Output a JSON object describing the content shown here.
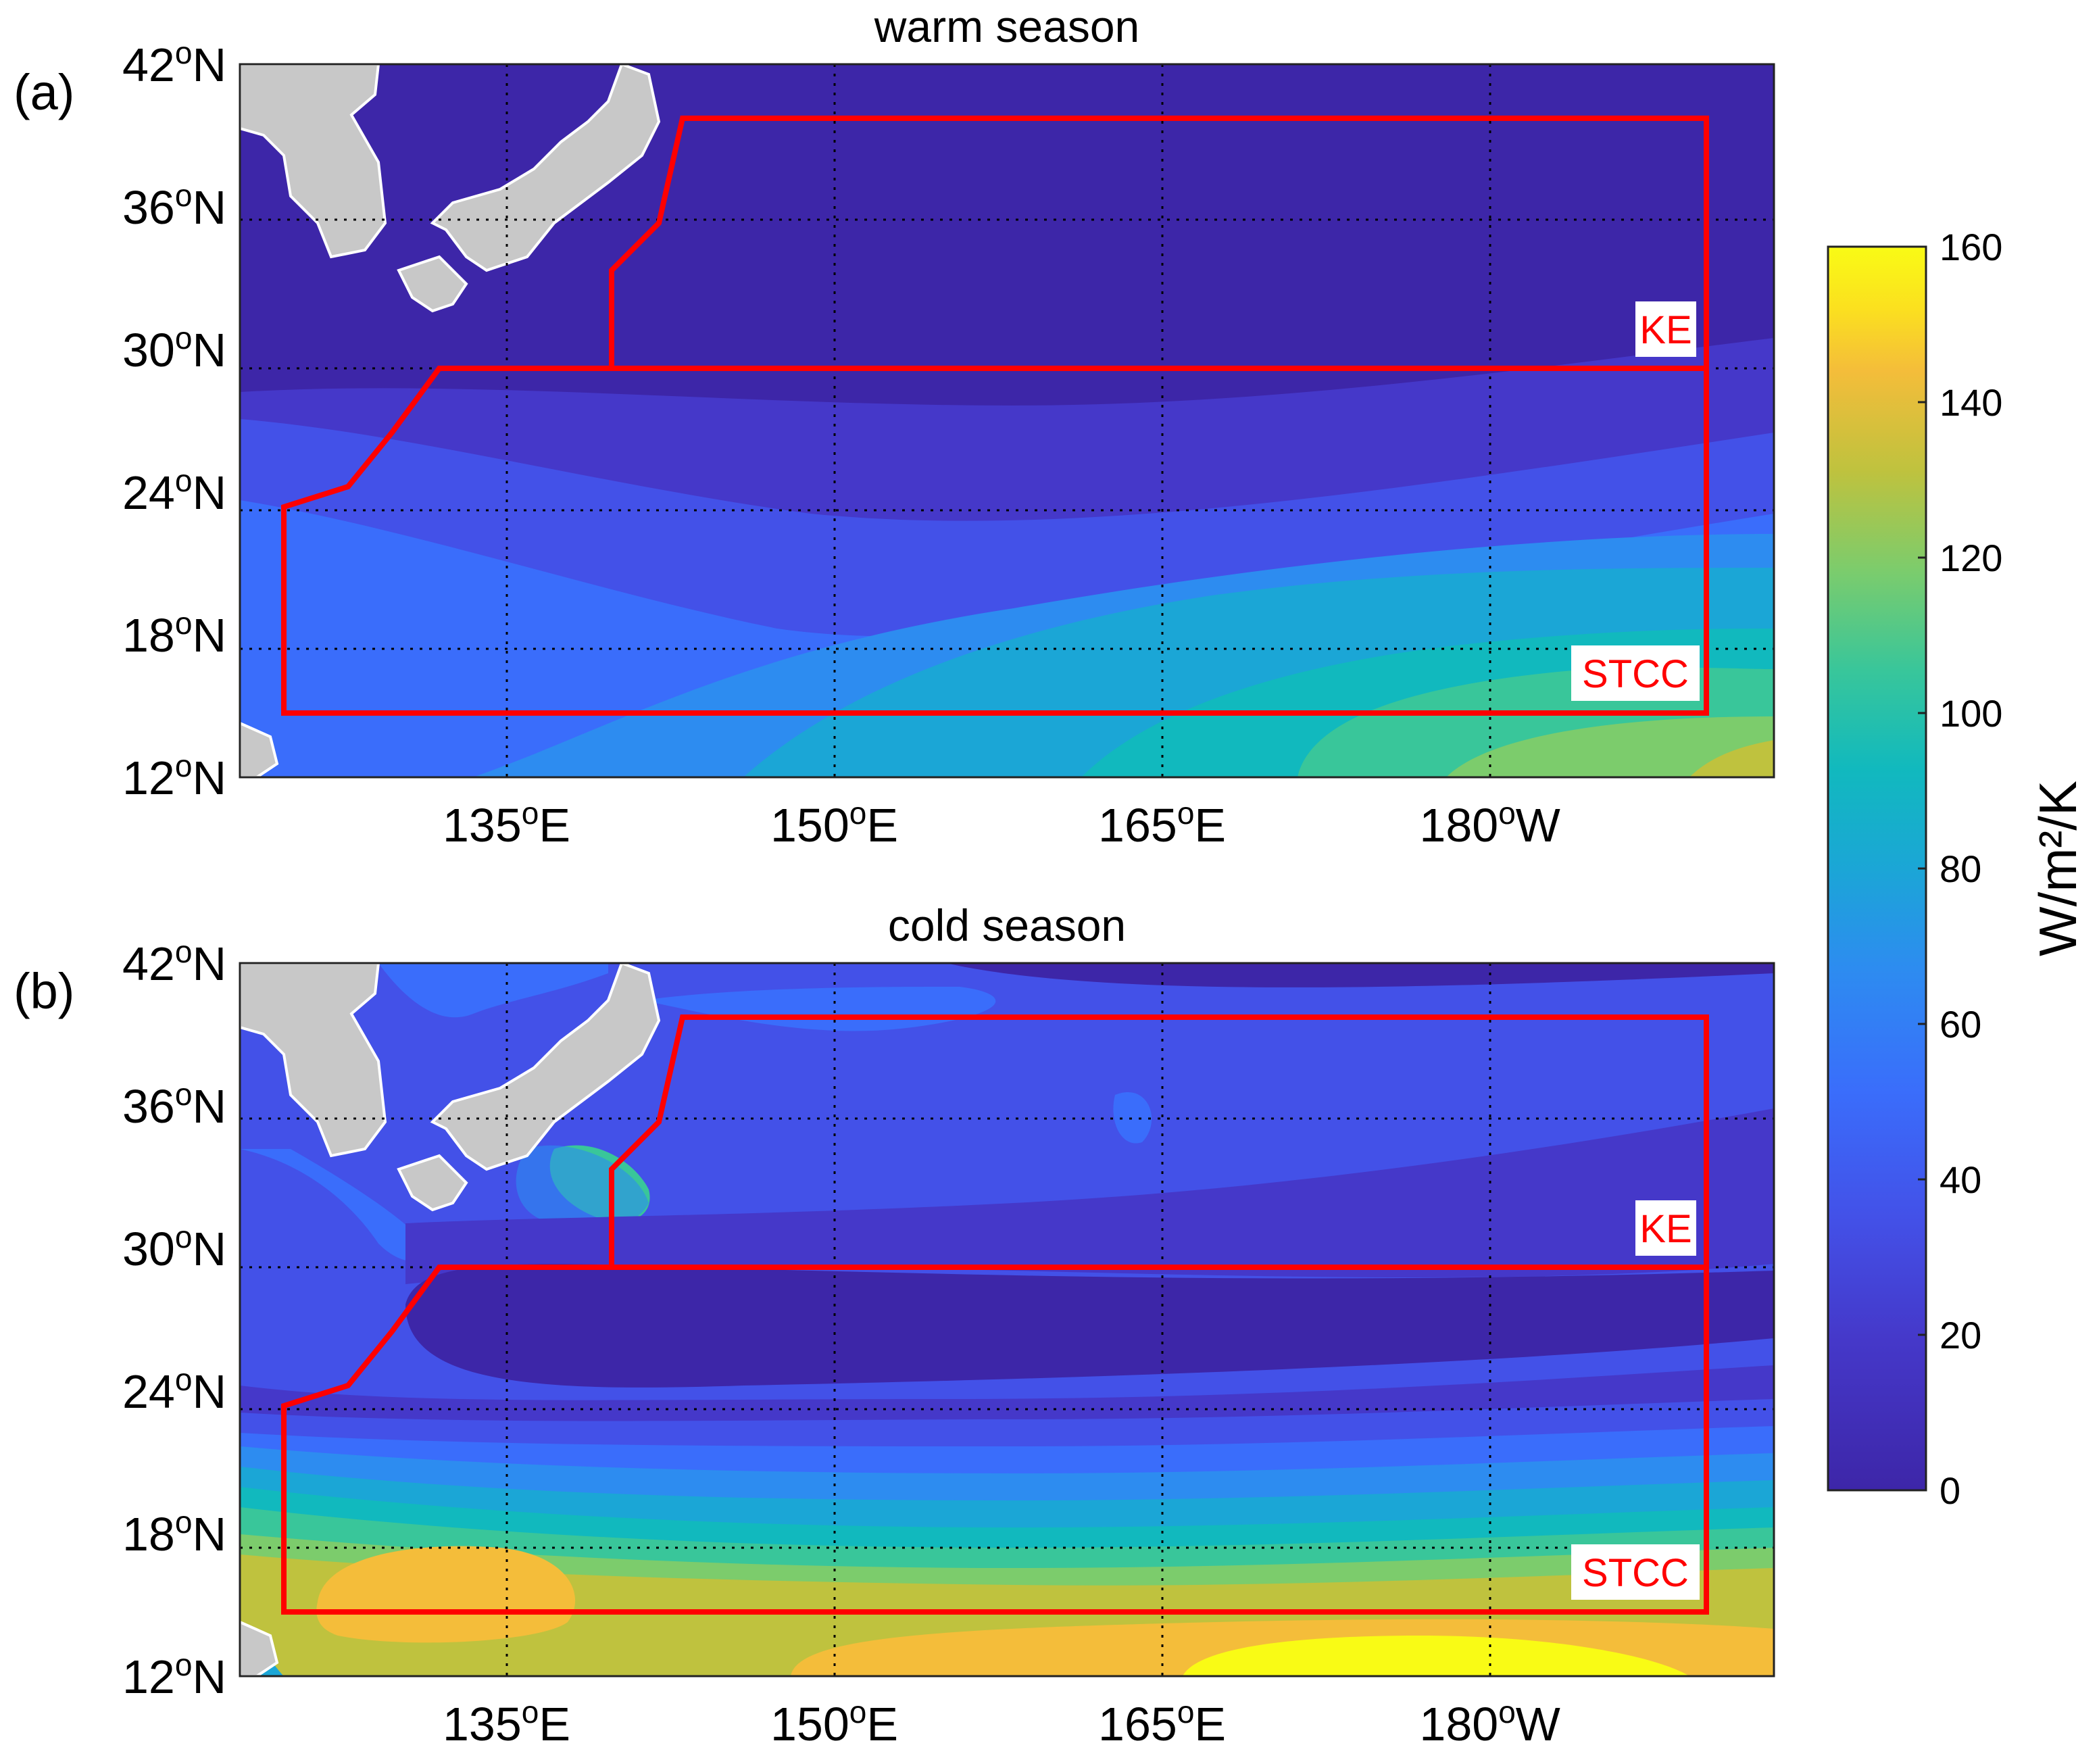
{
  "panels": [
    {
      "letter": "(a)",
      "title": "warm season",
      "regions": [
        "KE",
        "STCC"
      ]
    },
    {
      "letter": "(b)",
      "title": "cold season",
      "regions": [
        "KE",
        "STCC"
      ]
    }
  ],
  "lat_ticks": [
    {
      "value": 42,
      "deg": "42",
      "hem": "N"
    },
    {
      "value": 36,
      "deg": "36",
      "hem": "N"
    },
    {
      "value": 30,
      "deg": "30",
      "hem": "N"
    },
    {
      "value": 24,
      "deg": "24",
      "hem": "N"
    },
    {
      "value": 18,
      "deg": "18",
      "hem": "N"
    },
    {
      "value": 12,
      "deg": "12",
      "hem": "N"
    }
  ],
  "lon_ticks": [
    {
      "value": 135,
      "deg": "135",
      "hem": "E"
    },
    {
      "value": 150,
      "deg": "150",
      "hem": "E"
    },
    {
      "value": 165,
      "deg": "165",
      "hem": "E"
    },
    {
      "value": 180,
      "deg": "180",
      "hem": "W"
    }
  ],
  "degree_symbol": "o",
  "colorbar": {
    "unit": "W/m²/K",
    "ticks": [
      "0",
      "20",
      "40",
      "60",
      "80",
      "100",
      "120",
      "140",
      "160"
    ],
    "min": 0,
    "max": 160,
    "colormap": "parula"
  },
  "colors": {
    "region_outline": "#ff0000",
    "land": "#c8c8c8",
    "c0": "#3d26a8",
    "c1": "#4538c9",
    "c2": "#4351e8",
    "c3": "#3a6dfb",
    "c4": "#2d8cf0",
    "c5": "#1ba6d6",
    "c6": "#11b9be",
    "c7": "#39c69a",
    "c8": "#7ccc6c",
    "c9": "#bfc23e",
    "c10": "#f4bd3a",
    "c11": "#fbe01f",
    "c12": "#f9fb15"
  }
}
